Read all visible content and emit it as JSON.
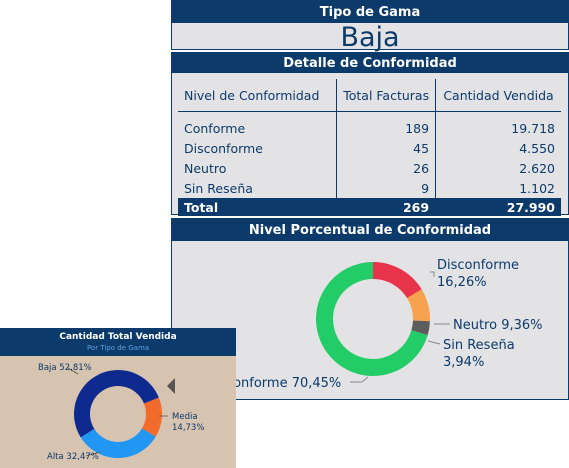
{
  "gama": {
    "header": "Tipo de Gama",
    "value": "Baja"
  },
  "detail": {
    "header": "Detalle de Conformidad",
    "columns": [
      "Nivel de Conformidad",
      "Total Facturas",
      "Cantidad Vendida"
    ],
    "rows": [
      {
        "nivel": "Conforme",
        "facturas": "189",
        "cantidad": "19.718"
      },
      {
        "nivel": "Disconforme",
        "facturas": "45",
        "cantidad": "4.550"
      },
      {
        "nivel": "Neutro",
        "facturas": "26",
        "cantidad": "2.620"
      },
      {
        "nivel": "Sin Reseña",
        "facturas": "9",
        "cantidad": "1.102"
      }
    ],
    "total": {
      "label": "Total",
      "facturas": "269",
      "cantidad": "27.990"
    }
  },
  "percent": {
    "header": "Nivel Porcentual de Conformidad",
    "labels": {
      "disconforme_name": "Disconforme",
      "disconforme_pct": "16,26%",
      "neutro": "Neutro 9,36%",
      "sin_resena_name": "Sin Reseña",
      "sin_resena_pct": "3,94%",
      "conforme": "Conforme 70,45%"
    }
  },
  "quantity": {
    "title": "Cantidad Total Vendida",
    "subtitle": "Por Tipo de Gama",
    "labels": {
      "baja": "Baja 52,81%",
      "media_name": "Media",
      "media_pct": "14,73%",
      "alta": "Alta 32,47%"
    }
  },
  "chart_data": [
    {
      "type": "pie",
      "title": "Nivel Porcentual de Conformidad",
      "categories": [
        "Conforme",
        "Disconforme",
        "Neutro",
        "Sin Reseña"
      ],
      "values": [
        70.45,
        16.26,
        9.36,
        3.94
      ],
      "colors": [
        "#22cc66",
        "#e8344a",
        "#f6a24f",
        "#5d5d5d"
      ],
      "donut": true
    },
    {
      "type": "pie",
      "title": "Cantidad Total Vendida",
      "subtitle": "Por Tipo de Gama",
      "categories": [
        "Baja",
        "Media",
        "Alta"
      ],
      "values": [
        52.81,
        14.73,
        32.47
      ],
      "colors": [
        "#0e2a8e",
        "#f26b2a",
        "#2196f3"
      ],
      "donut": true
    }
  ]
}
